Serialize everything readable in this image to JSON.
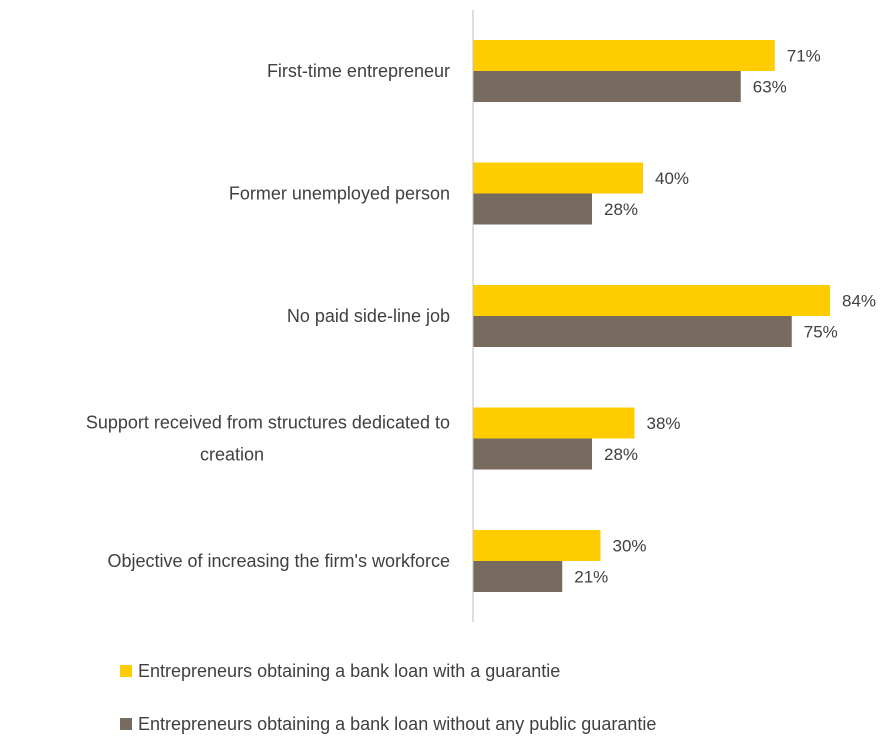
{
  "chart_data": {
    "type": "bar",
    "orientation": "horizontal",
    "categories": [
      [
        "First-time entrepreneur"
      ],
      [
        "Former unemployed person"
      ],
      [
        "No paid side-line job"
      ],
      [
        "Support received from structures dedicated to",
        "creation"
      ],
      [
        "Objective of increasing the firm's workforce"
      ]
    ],
    "series": [
      {
        "name": "Entrepreneurs obtaining a bank loan with a guarantie",
        "color": "#FFCC00",
        "values": [
          71,
          40,
          84,
          38,
          30
        ],
        "labels": [
          "71%",
          "40%",
          "84%",
          "38%",
          "30%"
        ]
      },
      {
        "name": "Entrepreneurs obtaining a bank loan without any public guarantie",
        "color": "#776B5F",
        "values": [
          63,
          28,
          75,
          28,
          21
        ],
        "labels": [
          "63%",
          "28%",
          "75%",
          "28%",
          "21%"
        ]
      }
    ],
    "xlim": [
      0,
      100
    ],
    "unit": "%",
    "grid": false,
    "legend_position": "bottom-left",
    "axis_color": "#BFBFBF"
  }
}
